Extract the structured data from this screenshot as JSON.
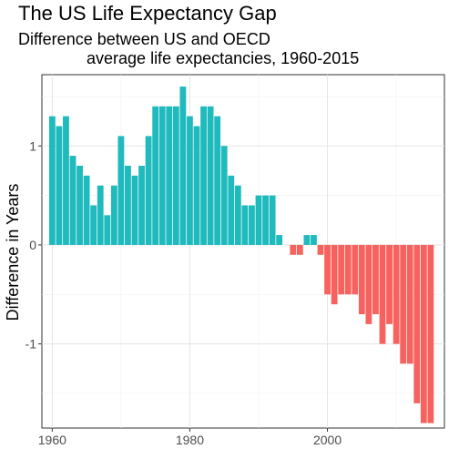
{
  "chart_data": {
    "type": "bar",
    "title": "The US Life Expectancy Gap",
    "subtitle": "Difference between US and OECD\n               average life expectancies, 1960-2015",
    "xlabel": "",
    "ylabel": "Difference in Years",
    "x_ticks": [
      1960,
      1980,
      2000
    ],
    "y_ticks": [
      -1,
      0,
      1
    ],
    "xlim": [
      1958.5,
      2017
    ],
    "ylim": [
      -1.85,
      1.72
    ],
    "grid": true,
    "legend": "none",
    "colors": {
      "positive": "#1fbabd",
      "negative": "#f8625e"
    },
    "x": [
      1960,
      1961,
      1962,
      1963,
      1964,
      1965,
      1966,
      1967,
      1968,
      1969,
      1970,
      1971,
      1972,
      1973,
      1974,
      1975,
      1976,
      1977,
      1978,
      1979,
      1980,
      1981,
      1982,
      1983,
      1984,
      1985,
      1986,
      1987,
      1988,
      1989,
      1990,
      1991,
      1992,
      1993,
      1994,
      1995,
      1996,
      1997,
      1998,
      1999,
      2000,
      2001,
      2002,
      2003,
      2004,
      2005,
      2006,
      2007,
      2008,
      2009,
      2010,
      2011,
      2012,
      2013,
      2014,
      2015
    ],
    "values": [
      1.3,
      1.2,
      1.3,
      0.9,
      0.8,
      0.7,
      0.4,
      0.6,
      0.3,
      0.6,
      1.1,
      0.8,
      0.7,
      0.8,
      1.1,
      1.4,
      1.4,
      1.4,
      1.4,
      1.6,
      1.3,
      1.2,
      1.4,
      1.4,
      1.3,
      1.0,
      0.7,
      0.6,
      0.4,
      0.4,
      0.5,
      0.5,
      0.5,
      0.1,
      0.0,
      -0.1,
      -0.1,
      0.1,
      0.1,
      -0.1,
      -0.5,
      -0.6,
      -0.5,
      -0.5,
      -0.5,
      -0.7,
      -0.8,
      -0.7,
      -1.0,
      -0.8,
      -1.0,
      -1.2,
      -1.2,
      -1.6,
      -1.8,
      -1.8
    ]
  }
}
